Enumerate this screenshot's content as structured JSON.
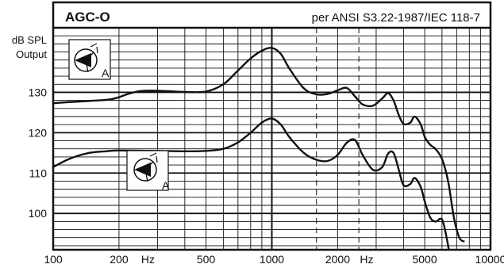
{
  "chart_data": {
    "type": "line",
    "title": "AGC-O",
    "subtitle": "per ANSI S3.22-1987/IEC 118-7",
    "ylabel_line1": "dB SPL",
    "ylabel_line2": "Output",
    "x_scale": "log",
    "xlim": [
      100,
      10000
    ],
    "ylim": [
      91,
      146
    ],
    "x_ticks": [
      100,
      200,
      500,
      1000,
      2000,
      5000,
      10000
    ],
    "x_tick_labels": [
      "100",
      "200",
      "500",
      "1000",
      "2000",
      "5000",
      "10000"
    ],
    "x_unit_labels": [
      {
        "x": 300,
        "text": "Hz"
      },
      {
        "x": 3000,
        "text": "Hz"
      }
    ],
    "y_ticks": [
      100,
      110,
      120,
      130
    ],
    "y_tick_labels": [
      "100",
      "110",
      "120",
      "130"
    ],
    "grid": true,
    "dashed_reference_x": [
      1600,
      2500
    ],
    "icon_marker_letter": "A",
    "series": [
      {
        "x": [
          100,
          120,
          150,
          180,
          200,
          220,
          250,
          300,
          400,
          500,
          600,
          700,
          800,
          900,
          1000,
          1100,
          1200,
          1400,
          1600,
          1800,
          2000,
          2200,
          2400,
          2600,
          2900,
          3200,
          3400,
          3600,
          3800,
          4000,
          4300,
          4500,
          4800,
          5000,
          5300,
          5600,
          6000,
          6400,
          6800,
          7200,
          7600
        ],
        "y": [
          127.3,
          127.6,
          127.9,
          128.2,
          128.8,
          129.6,
          130.3,
          130.4,
          130.1,
          130.2,
          132.0,
          135.4,
          138.4,
          140.3,
          141.0,
          139.5,
          136.0,
          131.0,
          129.5,
          129.6,
          130.5,
          131.1,
          129.0,
          127.0,
          126.7,
          128.5,
          129.8,
          128.0,
          124.5,
          122.2,
          122.5,
          124.0,
          122.0,
          119.0,
          117.0,
          116.0,
          113.5,
          108.0,
          99.0,
          94.0,
          93.0
        ]
      },
      {
        "x": [
          100,
          115,
          130,
          150,
          175,
          200,
          300,
          400,
          500,
          600,
          700,
          800,
          900,
          1000,
          1100,
          1200,
          1400,
          1600,
          1800,
          2000,
          2200,
          2400,
          2600,
          2900,
          3200,
          3400,
          3600,
          3800,
          4000,
          4300,
          4500,
          4800,
          5000,
          5300,
          5600,
          6000,
          6300,
          6600,
          6900
        ],
        "y": [
          111.5,
          113.2,
          114.3,
          115.1,
          115.4,
          115.6,
          115.5,
          115.4,
          115.5,
          116.0,
          117.6,
          120.0,
          122.5,
          123.5,
          122.0,
          119.0,
          115.0,
          113.3,
          113.0,
          114.5,
          117.5,
          118.2,
          114.5,
          110.8,
          111.5,
          114.8,
          115.0,
          111.0,
          107.0,
          107.3,
          108.8,
          106.5,
          103.0,
          99.0,
          98.0,
          98.5,
          94.0,
          88.0,
          84.0
        ]
      }
    ]
  }
}
